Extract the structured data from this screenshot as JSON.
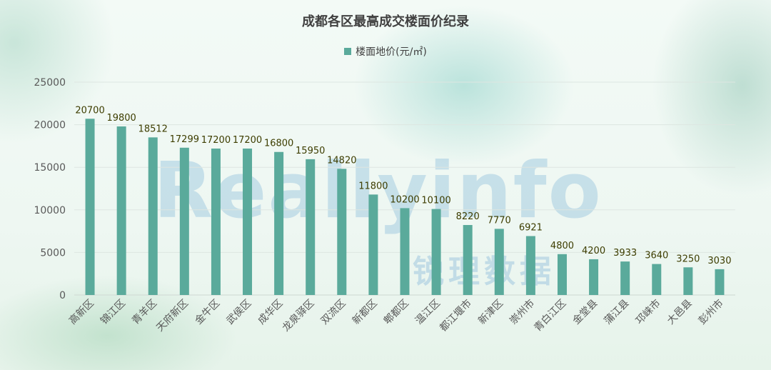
{
  "chart_data": {
    "type": "bar",
    "title": "成都各区最高成交楼面价纪录",
    "categories": [
      "高新区",
      "锦江区",
      "青羊区",
      "天府新区",
      "金牛区",
      "武侯区",
      "成华区",
      "龙泉驿区",
      "双流区",
      "新都区",
      "郫都区",
      "温江区",
      "都江堰市",
      "新津区",
      "崇州市",
      "青白江区",
      "金堂县",
      "蒲江县",
      "邛崃市",
      "大邑县",
      "彭州市"
    ],
    "series": [
      {
        "name": "楼面地价(元/㎡)",
        "values": [
          20700,
          19800,
          18512,
          17299,
          17200,
          17200,
          16800,
          15950,
          14820,
          11800,
          10200,
          10100,
          8220,
          7770,
          6921,
          4800,
          4200,
          3933,
          3640,
          3250,
          3030
        ],
        "color": "#5aaa9b"
      }
    ],
    "yticks": [
      0,
      5000,
      10000,
      15000,
      20000,
      25000
    ],
    "ylim": [
      0,
      25000
    ],
    "grid": true,
    "legend_position": "top",
    "data_label_color": "#3d3d00",
    "axis_text_color": "#595959"
  },
  "watermark": {
    "text": "Reallyinfo",
    "text_cn": "锐理数据"
  }
}
